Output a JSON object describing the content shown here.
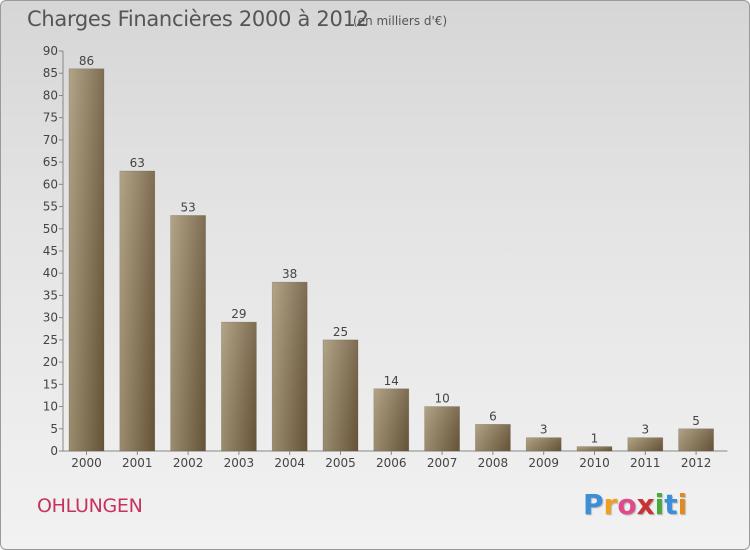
{
  "header": {
    "title": "Charges Financières 2000 à 2012",
    "subtitle": "(en milliers d'€)"
  },
  "footer": {
    "commune": "OHLUNGEN",
    "logo_letters": [
      "P",
      "r",
      "o",
      "x",
      "i",
      "t",
      "i"
    ],
    "logo_colors": [
      "#3a8fd8",
      "#f0a020",
      "#e04a8a",
      "#c83232",
      "#4aa83a",
      "#3a8fd8",
      "#e08a20"
    ]
  },
  "colors": {
    "bar_light": "#a89878",
    "bar_dark": "#6e5a3c",
    "text": "#444444",
    "commune": "#c8325a"
  },
  "chart_data": {
    "type": "bar",
    "title": "Charges Financières 2000 à 2012",
    "subtitle": "(en milliers d'€)",
    "categories": [
      "2000",
      "2001",
      "2002",
      "2003",
      "2004",
      "2005",
      "2006",
      "2007",
      "2008",
      "2009",
      "2010",
      "2011",
      "2012"
    ],
    "values": [
      86,
      63,
      53,
      29,
      38,
      25,
      14,
      10,
      6,
      3,
      1,
      3,
      5
    ],
    "ylim": [
      0,
      90
    ],
    "yticks": [
      0,
      5,
      10,
      15,
      20,
      25,
      30,
      35,
      40,
      45,
      50,
      55,
      60,
      65,
      70,
      75,
      80,
      85,
      90
    ],
    "data_labels": true,
    "grid": false,
    "legend": "none"
  }
}
